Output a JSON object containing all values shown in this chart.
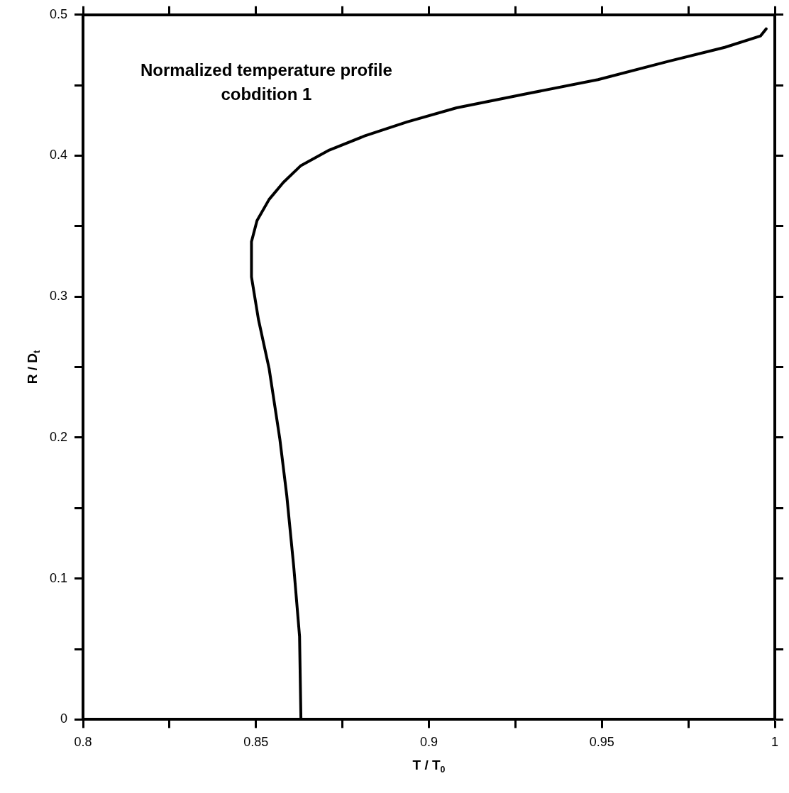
{
  "chart_data": {
    "type": "line",
    "xlabel": "T / T$_{0}$",
    "ylabel": "R / D$_{t}$",
    "annotations": [
      "Normalized temperature profile",
      "cobdition 1"
    ],
    "xlim": [
      0.8,
      1
    ],
    "xticks": [
      0.8,
      {
        "value": 0.825,
        "label": null
      },
      0.85,
      {
        "value": 0.875,
        "label": null
      },
      0.9,
      {
        "value": 0.925,
        "label": null
      },
      0.95,
      {
        "value": 0.975,
        "label": null
      },
      1
    ],
    "ylim": [
      0,
      0.5
    ],
    "yticks": [
      0,
      {
        "value": 0.05,
        "label": null
      },
      0.1,
      {
        "value": 0.15,
        "label": null
      },
      0.2,
      {
        "value": 0.25,
        "label": null
      },
      0.3,
      {
        "value": 0.35,
        "label": null
      },
      0.4,
      {
        "value": 0.45,
        "label": null
      },
      0.5
    ],
    "grid": false,
    "legend": false,
    "marker": "none",
    "line_style": "solid",
    "series": [
      {
        "color": "#000000",
        "x": [
          0.863,
          0.8626,
          0.8609,
          0.8589,
          0.8569,
          0.8538,
          0.8507,
          0.8487,
          0.8487,
          0.8503,
          0.8538,
          0.8579,
          0.863,
          0.8712,
          0.8814,
          0.8937,
          0.908,
          0.9284,
          0.9489,
          0.9693,
          0.9857,
          0.9959,
          0.9975
        ],
        "values": [
          0,
          0.059,
          0.109,
          0.159,
          0.199,
          0.249,
          0.284,
          0.314,
          0.339,
          0.354,
          0.369,
          0.381,
          0.393,
          0.404,
          0.414,
          0.424,
          0.434,
          0.444,
          0.454,
          0.467,
          0.477,
          0.485,
          0.49
        ]
      }
    ]
  }
}
